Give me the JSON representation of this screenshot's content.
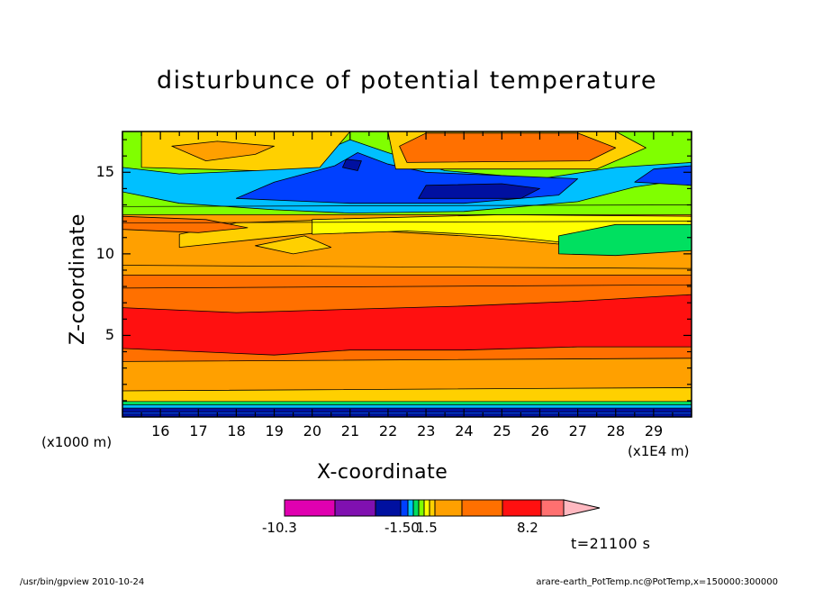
{
  "chart_data": {
    "type": "contour",
    "title": "disturbunce of potential temperature",
    "xlabel": "X-coordinate",
    "ylabel": "Z-coordinate",
    "x_unit": "(x1E4 m)",
    "y_unit": "(x1000 m)",
    "xlim": [
      15,
      30
    ],
    "ylim": [
      0,
      17.5
    ],
    "x_ticks": [
      "16",
      "17",
      "18",
      "19",
      "20",
      "21",
      "22",
      "23",
      "24",
      "25",
      "26",
      "27",
      "28",
      "29"
    ],
    "y_ticks": [
      "5",
      "10",
      "15"
    ],
    "colorbar": {
      "tick_labels": [
        "-10.3",
        "-1.50",
        "1.5",
        "8.2"
      ],
      "colors": [
        "#e000b0",
        "#8010b0",
        "#0010a0",
        "#0040ff",
        "#00c0ff",
        "#00e060",
        "#80ff00",
        "#ffff00",
        "#ffd000",
        "#ffa000",
        "#ff7000",
        "#ff1010",
        "#ff7070",
        "#ffb8c0"
      ]
    },
    "layers": [
      {
        "level": 0,
        "color": "#ff6a00",
        "points": [
          [
            15,
            0.6
          ],
          [
            30,
            0.6
          ],
          [
            30,
            1.5
          ],
          [
            15,
            1.5
          ]
        ]
      },
      {
        "level": 1,
        "color": "#ffd000",
        "points": [
          [
            15,
            0.9
          ],
          [
            30,
            0.9
          ],
          [
            30,
            1.8
          ],
          [
            15,
            1.8
          ]
        ]
      },
      {
        "level": 2,
        "color": "#ffa000",
        "points": [
          [
            15,
            1.6
          ],
          [
            30,
            1.8
          ],
          [
            30,
            4.2
          ],
          [
            15,
            4.0
          ]
        ]
      },
      {
        "level": 3,
        "color": "#ff7000",
        "points": [
          [
            15,
            3.4
          ],
          [
            30,
            3.6
          ],
          [
            30,
            8.8
          ],
          [
            15,
            8.8
          ]
        ]
      },
      {
        "level": 4,
        "color": "#ff1010",
        "points": [
          [
            15,
            4.2
          ],
          [
            17,
            4
          ],
          [
            19,
            3.8
          ],
          [
            21,
            4.1
          ],
          [
            24,
            4.1
          ],
          [
            27,
            4.3
          ],
          [
            30,
            4.3
          ],
          [
            30,
            7.5
          ],
          [
            27,
            7.1
          ],
          [
            24,
            6.8
          ],
          [
            21,
            6.6
          ],
          [
            18,
            6.4
          ],
          [
            15,
            6.7
          ]
        ]
      },
      {
        "level": 5,
        "color": "#ffa000",
        "points": [
          [
            15,
            8.7
          ],
          [
            30,
            8.7
          ],
          [
            30,
            12.8
          ],
          [
            15,
            12.8
          ]
        ]
      },
      {
        "level": 6,
        "color": "#ffd000",
        "points": [
          [
            16.5,
            10.4
          ],
          [
            19,
            11
          ],
          [
            21,
            11.5
          ],
          [
            24,
            11.1
          ],
          [
            26.5,
            10.6
          ],
          [
            26.5,
            11.6
          ],
          [
            22,
            12.2
          ],
          [
            18,
            11.9
          ],
          [
            16.5,
            11.2
          ]
        ]
      },
      {
        "level": 7,
        "color": "#ffff00",
        "points": [
          [
            20,
            11.2
          ],
          [
            22.5,
            11.4
          ],
          [
            25,
            11.1
          ],
          [
            27,
            10.6
          ],
          [
            30,
            10.6
          ],
          [
            30,
            12.3
          ],
          [
            25,
            12.4
          ],
          [
            20,
            12.1
          ]
        ]
      },
      {
        "level": 8,
        "color": "#00e060",
        "points": [
          [
            26.5,
            10
          ],
          [
            28,
            9.9
          ],
          [
            30,
            10.2
          ],
          [
            30,
            11.8
          ],
          [
            28,
            11.8
          ],
          [
            26.5,
            11.1
          ]
        ]
      },
      {
        "level": 9,
        "color": "#80ff00",
        "points": [
          [
            15,
            12.4
          ],
          [
            30,
            12.4
          ],
          [
            30,
            17.5
          ],
          [
            15,
            17.5
          ]
        ]
      },
      {
        "level": 10,
        "color": "#00c0ff",
        "points": [
          [
            15,
            13.8
          ],
          [
            16.5,
            13.1
          ],
          [
            19,
            12.7
          ],
          [
            21,
            12.5
          ],
          [
            24,
            12.6
          ],
          [
            27,
            13.2
          ],
          [
            28.5,
            14.1
          ],
          [
            30,
            14.6
          ],
          [
            30,
            15.6
          ],
          [
            28,
            15.3
          ],
          [
            26,
            14.6
          ],
          [
            23.5,
            15.1
          ],
          [
            22,
            16.2
          ],
          [
            21,
            17
          ],
          [
            20.2,
            16.2
          ],
          [
            18.5,
            15.1
          ],
          [
            16.5,
            14.9
          ],
          [
            15,
            15.3
          ]
        ]
      },
      {
        "level": 11,
        "color": "#0040ff",
        "points": [
          [
            18,
            13.4
          ],
          [
            21,
            13.1
          ],
          [
            24,
            13.1
          ],
          [
            26.5,
            13.6
          ],
          [
            27,
            14.6
          ],
          [
            23,
            15
          ],
          [
            22,
            15.5
          ],
          [
            21.2,
            16.2
          ],
          [
            20.6,
            15.4
          ],
          [
            19,
            14.4
          ]
        ]
      },
      {
        "level": 12,
        "color": "#0010a0",
        "points": [
          [
            22.8,
            13.4
          ],
          [
            25.5,
            13.4
          ],
          [
            26,
            14
          ],
          [
            25,
            14.3
          ],
          [
            23,
            14.2
          ]
        ]
      },
      {
        "level": 13,
        "color": "#0040ff",
        "points": [
          [
            28.5,
            14.4
          ],
          [
            30,
            14.2
          ],
          [
            30,
            15.4
          ],
          [
            29,
            15.2
          ]
        ]
      },
      {
        "level": 14,
        "color": "#ffd000",
        "points": [
          [
            15.5,
            15.3
          ],
          [
            18.5,
            15.1
          ],
          [
            20.2,
            15.3
          ],
          [
            21,
            17.5
          ],
          [
            15.5,
            17.5
          ]
        ]
      },
      {
        "level": 15,
        "color": "#ffa000",
        "points": [
          [
            16.3,
            16.6
          ],
          [
            17.5,
            16.9
          ],
          [
            19,
            16.6
          ],
          [
            18.5,
            16.1
          ],
          [
            17.2,
            15.7
          ]
        ]
      },
      {
        "level": 16,
        "color": "#ffd000",
        "points": [
          [
            22.2,
            15.2
          ],
          [
            27.5,
            15.2
          ],
          [
            28.8,
            16.5
          ],
          [
            28,
            17.5
          ],
          [
            22,
            17.5
          ]
        ]
      },
      {
        "level": 17,
        "color": "#ff7000",
        "points": [
          [
            22.5,
            15.6
          ],
          [
            27.3,
            15.7
          ],
          [
            28,
            16.5
          ],
          [
            27,
            17.4
          ],
          [
            23,
            17.4
          ],
          [
            22.3,
            16.6
          ]
        ]
      },
      {
        "level": 18,
        "color": "#0010a0",
        "points": [
          [
            20.8,
            15.3
          ],
          [
            21.2,
            15.1
          ],
          [
            21.3,
            15.7
          ],
          [
            20.9,
            15.8
          ]
        ]
      },
      {
        "level": 19,
        "color": "#ff7000",
        "points": [
          [
            15,
            11.5
          ],
          [
            17,
            11.3
          ],
          [
            18.3,
            11.6
          ],
          [
            17.2,
            12.1
          ],
          [
            15,
            12.3
          ]
        ]
      },
      {
        "level": 20,
        "color": "#ffd000",
        "points": [
          [
            18.5,
            10.5
          ],
          [
            19.5,
            10
          ],
          [
            20.5,
            10.4
          ],
          [
            19.8,
            11.1
          ]
        ]
      }
    ]
  },
  "footer": {
    "left": "/usr/bin/gpview   2010-10-24",
    "right": "arare-earth_PotTemp.nc@PotTemp,x=150000:300000"
  },
  "annotation": "t=21100 s"
}
